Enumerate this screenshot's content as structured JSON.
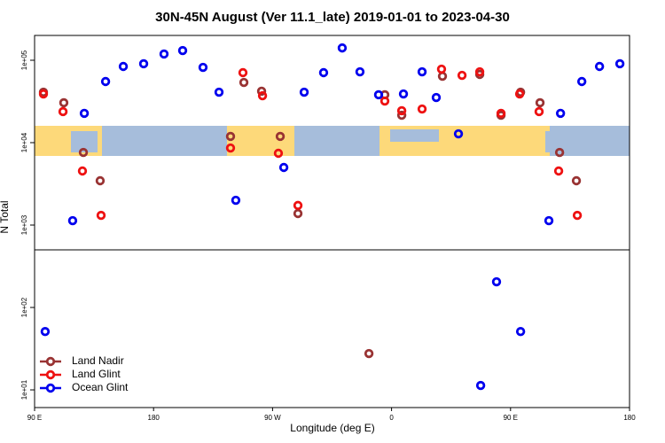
{
  "chart_data": {
    "type": "scatter",
    "title": "30N-45N August (Ver 11.1_late)   2019-01-01 to 2023-04-30",
    "x_label": "Longitude (deg E)",
    "y_label": "N Total",
    "log_y": true,
    "legend": "bottomleft",
    "xlim": [
      90,
      540
    ],
    "ylim": [
      6.1,
      200000
    ],
    "xticks": [
      {
        "value": 90,
        "label": "90 E"
      },
      180,
      {
        "value": 270,
        "label": "90 W"
      },
      {
        "value": 360,
        "label": "0"
      },
      {
        "value": 450,
        "label": "90 E"
      },
      {
        "value": 540,
        "label": "180"
      }
    ],
    "yticks": [
      {
        "value": 10,
        "label": "1e+01"
      },
      {
        "value": 100,
        "label": "1e+02"
      },
      {
        "value": 1000,
        "label": "1e+03"
      },
      {
        "value": 10000,
        "label": "1e+04"
      },
      {
        "value": 100000,
        "label": "1e+05"
      }
    ],
    "series": [
      {
        "name": "Land Nadir",
        "color": "#993333",
        "x": [
          96.7,
          112.1,
          126.9,
          139.6,
          238.2,
          248.3,
          261.7,
          275.8,
          289.2,
          342.9,
          354.9,
          367.7,
          398.5,
          426.7,
          442.8,
          457.6,
          472.3,
          487.1,
          499.8
        ],
        "values": [
          41000,
          30500,
          7600,
          3450,
          11900,
          53800,
          42100,
          11900,
          1380,
          27.6,
          38100,
          21500,
          64000,
          67300,
          21500,
          41000,
          30500,
          7600,
          3450
        ]
      },
      {
        "name": "Land Glint",
        "color": "#ee1111",
        "x": [
          96.7,
          111.5,
          126.2,
          140.3,
          238.2,
          247.6,
          262.4,
          274.4,
          289.2,
          354.9,
          367.7,
          383.1,
          397.8,
          413.3,
          426.7,
          442.8,
          456.9,
          471.6,
          486.4,
          500.5
        ],
        "values": [
          39000,
          23800,
          4530,
          1310,
          8610,
          70700,
          37100,
          7430,
          1730,
          32000,
          24400,
          25600,
          78000,
          65600,
          72400,
          22700,
          39000,
          23800,
          4530,
          1310
        ]
      },
      {
        "name": "Ocean Glint",
        "color": "#0000ee",
        "x": [
          98.0,
          118.8,
          127.6,
          143.7,
          157.1,
          172.5,
          187.9,
          202.0,
          217.4,
          229.5,
          242.2,
          278.5,
          293.9,
          308.6,
          322.7,
          336.1,
          350.2,
          369.0,
          383.1,
          393.8,
          410.6,
          427.4,
          439.4,
          457.6,
          479.0,
          487.8,
          503.9,
          517.3,
          532.7
        ],
        "values": [
          51,
          1130,
          22700,
          55200,
          84100,
          90600,
          119000,
          131000,
          82000,
          41000,
          2000,
          5000,
          41000,
          70700,
          141000,
          72400,
          38100,
          39000,
          72400,
          35300,
          12800,
          11.3,
          205,
          51,
          1130,
          22700,
          55200,
          84100,
          90600
        ]
      }
    ]
  }
}
